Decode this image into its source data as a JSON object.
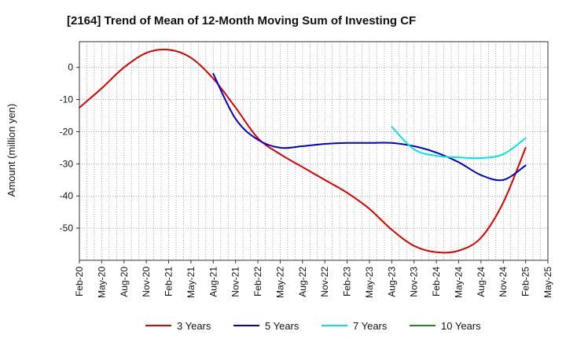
{
  "chart_data": {
    "type": "line",
    "title": "[2164]  Trend of Mean of 12-Month Moving Sum of Investing CF",
    "xlabel": "",
    "ylabel": "Amount (million yen)",
    "ylim": [
      -60,
      8
    ],
    "yticks": [
      0,
      -10,
      -20,
      -30,
      -40,
      -50
    ],
    "x_months": [
      "2020-02",
      "2020-05",
      "2020-08",
      "2020-11",
      "2021-02",
      "2021-05",
      "2021-08",
      "2021-11",
      "2022-02",
      "2022-05",
      "2022-08",
      "2022-11",
      "2023-02",
      "2023-05",
      "2023-08",
      "2023-11",
      "2024-02",
      "2024-05",
      "2024-08",
      "2024-11",
      "2025-02",
      "2025-05"
    ],
    "x_tick_labels": [
      "Feb-20",
      "May-20",
      "Aug-20",
      "Nov-20",
      "Feb-21",
      "May-21",
      "Aug-21",
      "Nov-21",
      "Feb-22",
      "May-22",
      "Aug-22",
      "Nov-22",
      "Feb-23",
      "May-23",
      "Aug-23",
      "Nov-23",
      "Feb-24",
      "May-24",
      "Aug-24",
      "Nov-24",
      "Feb-25",
      "May-25"
    ],
    "grid": true,
    "legend_position": "bottom",
    "series": [
      {
        "name": "3 Years",
        "color": "#dd0000",
        "x": [
          "2020-02",
          "2020-05",
          "2020-08",
          "2020-11",
          "2021-02",
          "2021-05",
          "2021-08",
          "2021-11",
          "2022-02",
          "2022-05",
          "2022-08",
          "2022-11",
          "2023-02",
          "2023-05",
          "2023-08",
          "2023-11",
          "2024-02",
          "2024-05",
          "2024-08",
          "2024-11",
          "2025-02"
        ],
        "values": [
          -12.5,
          -6.5,
          0.0,
          4.5,
          5.5,
          3.0,
          -3.5,
          -12.5,
          -22.0,
          -27.0,
          -31.0,
          -35.0,
          -39.0,
          -44.0,
          -50.5,
          -55.5,
          -57.5,
          -57.0,
          -53.0,
          -42.0,
          -25.0
        ]
      },
      {
        "name": "5 Years",
        "color": "#0000cc",
        "x": [
          "2021-08",
          "2021-11",
          "2022-02",
          "2022-05",
          "2022-08",
          "2022-11",
          "2023-02",
          "2023-05",
          "2023-08",
          "2023-11",
          "2024-02",
          "2024-05",
          "2024-08",
          "2024-11",
          "2025-02"
        ],
        "values": [
          -2.0,
          -16.0,
          -22.5,
          -25.0,
          -24.5,
          -23.8,
          -23.5,
          -23.5,
          -23.5,
          -24.5,
          -26.5,
          -29.5,
          -33.5,
          -35.0,
          -30.5
        ]
      },
      {
        "name": "7 Years",
        "color": "#00e5e5",
        "x": [
          "2023-08",
          "2023-11",
          "2024-02",
          "2024-05",
          "2024-08",
          "2024-11",
          "2025-02"
        ],
        "values": [
          -18.5,
          -25.5,
          -27.5,
          -28.0,
          -28.2,
          -27.0,
          -22.0
        ]
      },
      {
        "name": "10 Years",
        "color": "#228b22",
        "x": [],
        "values": []
      }
    ]
  }
}
